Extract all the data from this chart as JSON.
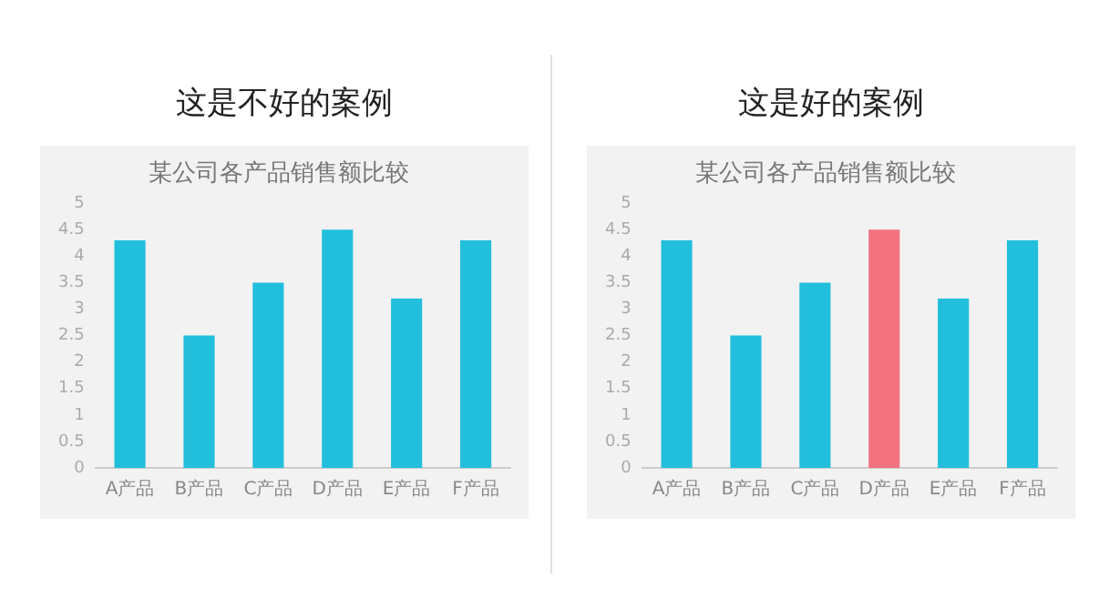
{
  "chart_data": [
    {
      "type": "bar",
      "subtitle": "这是不好的案例",
      "title": "某公司各产品销售额比较",
      "categories": [
        "A产品",
        "B产品",
        "C产品",
        "D产品",
        "E产品",
        "F产品"
      ],
      "values": [
        4.3,
        2.5,
        3.5,
        4.5,
        3.2,
        4.3
      ],
      "colors": [
        "#22bfdc",
        "#22bfdc",
        "#22bfdc",
        "#22bfdc",
        "#22bfdc",
        "#22bfdc"
      ],
      "ylim": [
        0,
        5
      ],
      "yticks": [
        0,
        0.5,
        1,
        1.5,
        2,
        2.5,
        3,
        3.5,
        4,
        4.5,
        5
      ],
      "grid": false,
      "legend": false
    },
    {
      "type": "bar",
      "subtitle": "这是好的案例",
      "title": "某公司各产品销售额比较",
      "categories": [
        "A产品",
        "B产品",
        "C产品",
        "D产品",
        "E产品",
        "F产品"
      ],
      "values": [
        4.3,
        2.5,
        3.5,
        4.5,
        3.2,
        4.3
      ],
      "colors": [
        "#22bfdc",
        "#22bfdc",
        "#22bfdc",
        "#f2727f",
        "#22bfdc",
        "#22bfdc"
      ],
      "ylim": [
        0,
        5
      ],
      "yticks": [
        0,
        0.5,
        1,
        1.5,
        2,
        2.5,
        3,
        3.5,
        4,
        4.5,
        5
      ],
      "grid": false,
      "legend": false
    }
  ]
}
